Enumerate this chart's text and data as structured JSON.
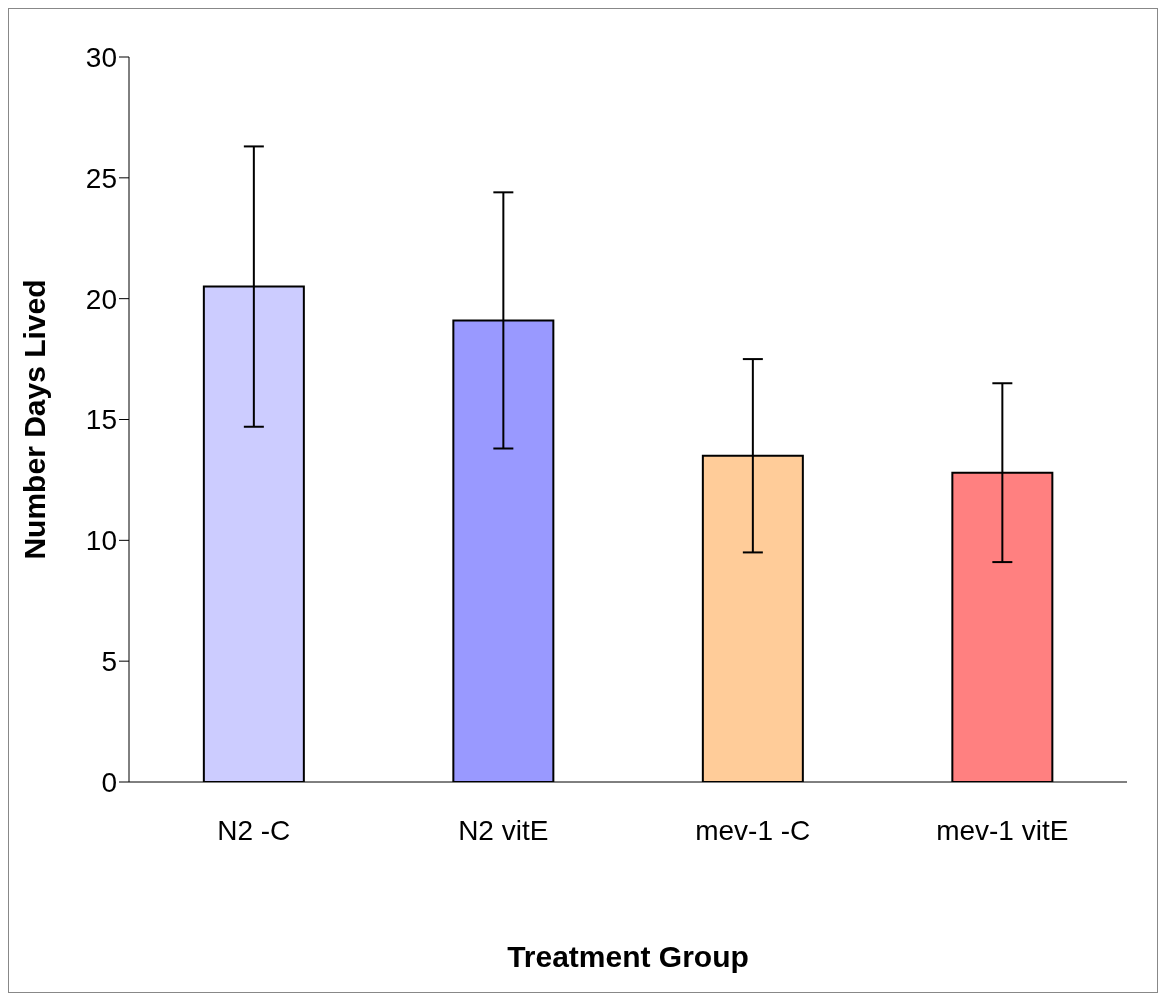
{
  "chart_data": {
    "type": "bar",
    "xlabel": "Treatment Group",
    "ylabel": "Number Days Lived",
    "categories": [
      "N2 -C",
      "N2 vitE",
      "mev-1 -C",
      "mev-1 vitE"
    ],
    "values": [
      20.5,
      19.1,
      13.5,
      12.8
    ],
    "errors": [
      5.8,
      5.3,
      4.0,
      3.7
    ],
    "colors": [
      "#ccccff",
      "#9999ff",
      "#ffcc99",
      "#ff8080"
    ],
    "ylim": [
      0,
      30
    ],
    "yticks": [
      0,
      5,
      10,
      15,
      20,
      25,
      30
    ],
    "grid": false
  }
}
